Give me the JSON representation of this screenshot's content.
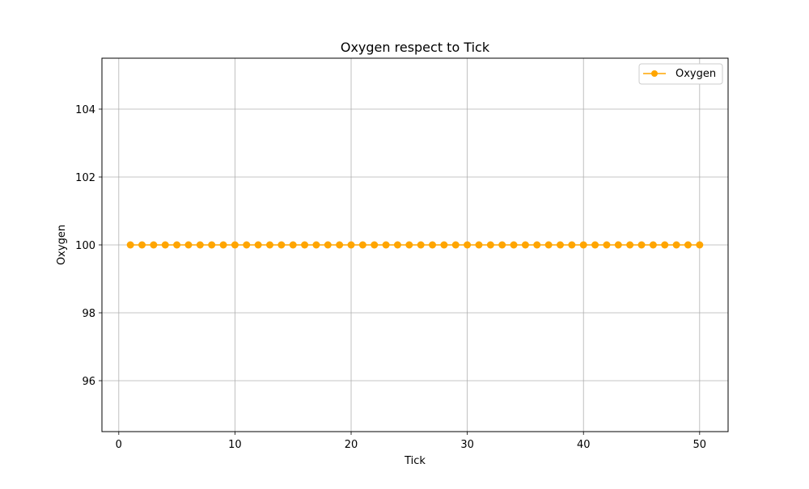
{
  "chart_data": {
    "type": "line",
    "title": "Oxygen respect to Tick",
    "xlabel": "Tick",
    "ylabel": "Oxygen",
    "xlim": [
      -1.45,
      52.45
    ],
    "ylim": [
      94.5,
      105.5
    ],
    "xticks": [
      0,
      10,
      20,
      30,
      40,
      50
    ],
    "yticks": [
      96,
      98,
      100,
      102,
      104
    ],
    "grid": true,
    "legend_position": "top-right",
    "series": [
      {
        "name": "Oxygen",
        "color": "#FFA500",
        "marker": "circle",
        "x": [
          1,
          2,
          3,
          4,
          5,
          6,
          7,
          8,
          9,
          10,
          11,
          12,
          13,
          14,
          15,
          16,
          17,
          18,
          19,
          20,
          21,
          22,
          23,
          24,
          25,
          26,
          27,
          28,
          29,
          30,
          31,
          32,
          33,
          34,
          35,
          36,
          37,
          38,
          39,
          40,
          41,
          42,
          43,
          44,
          45,
          46,
          47,
          48,
          49,
          50
        ],
        "y": [
          100,
          100,
          100,
          100,
          100,
          100,
          100,
          100,
          100,
          100,
          100,
          100,
          100,
          100,
          100,
          100,
          100,
          100,
          100,
          100,
          100,
          100,
          100,
          100,
          100,
          100,
          100,
          100,
          100,
          100,
          100,
          100,
          100,
          100,
          100,
          100,
          100,
          100,
          100,
          100,
          100,
          100,
          100,
          100,
          100,
          100,
          100,
          100,
          100,
          100
        ]
      }
    ]
  }
}
